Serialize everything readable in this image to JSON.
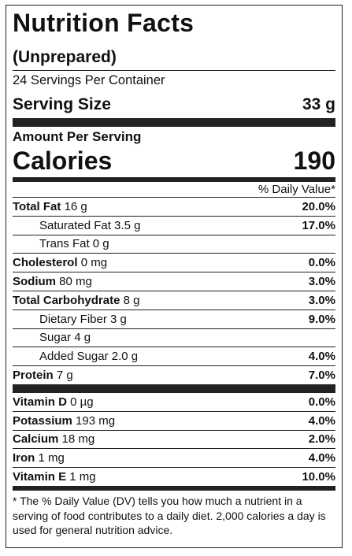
{
  "title": "Nutrition Facts",
  "subtitle": "(Unprepared)",
  "servings_per_container": "24 Servings Per Container",
  "serving_size": {
    "label": "Serving Size",
    "value": "33 g"
  },
  "amount_per_serving": "Amount Per Serving",
  "calories": {
    "label": "Calories",
    "value": "190"
  },
  "daily_value_header": "% Daily Value*",
  "nutrients": [
    {
      "name": "Total Fat",
      "amount": "16 g",
      "dv": "20.0%"
    },
    {
      "name": "Saturated Fat 3.5 g",
      "dv": "17.0%"
    },
    {
      "name": "Trans Fat 0 g",
      "dv": ""
    },
    {
      "name": "Cholesterol",
      "amount": "0 mg",
      "dv": "0.0%"
    },
    {
      "name": "Sodium",
      "amount": "80 mg",
      "dv": "3.0%"
    },
    {
      "name": "Total Carbohydrate",
      "amount": "8 g",
      "dv": "3.0%"
    },
    {
      "name": "Dietary Fiber 3 g",
      "dv": "9.0%"
    },
    {
      "name": "Sugar 4 g",
      "dv": ""
    },
    {
      "name": "Added Sugar 2.0 g",
      "dv": "4.0%"
    },
    {
      "name": "Protein",
      "amount": "7 g",
      "dv": "7.0%"
    }
  ],
  "vitamins": [
    {
      "name": "Vitamin D",
      "amount": "0 µg",
      "dv": "0.0%"
    },
    {
      "name": "Potassium",
      "amount": "193 mg",
      "dv": "4.0%"
    },
    {
      "name": "Calcium",
      "amount": "18 mg",
      "dv": "2.0%"
    },
    {
      "name": "Iron",
      "amount": "1 mg",
      "dv": "4.0%"
    },
    {
      "name": "Vitamin E",
      "amount": "1 mg",
      "dv": "10.0%"
    }
  ],
  "footnote": "* The % Daily Value (DV) tells you how much a nutrient in a serving of food contributes to a daily diet. 2,000 calories a day is used for general nutrition advice."
}
